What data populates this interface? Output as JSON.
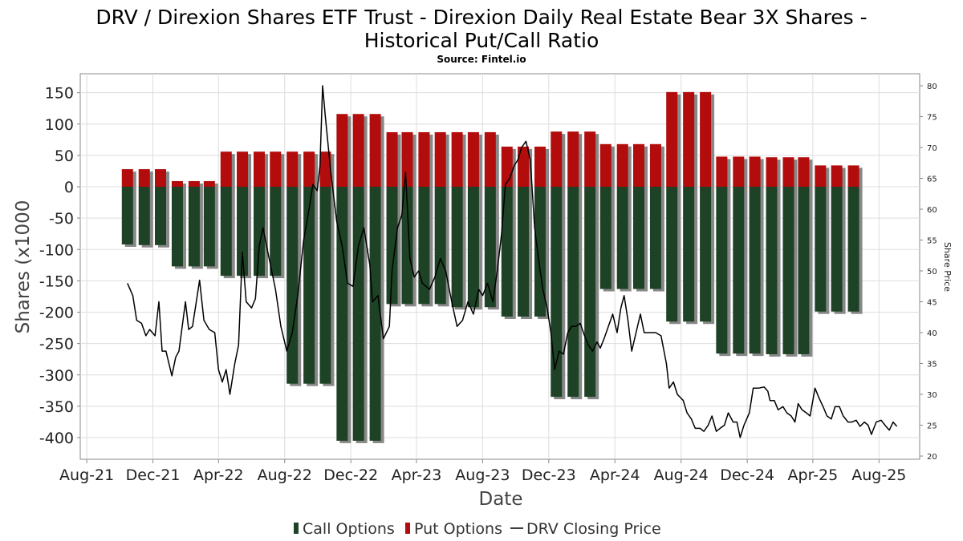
{
  "chart_data": {
    "type": "bar",
    "title_line1": "DRV / Direxion Shares ETF Trust - Direxion Daily Real Estate Bear 3X Shares -",
    "title_line2": "Historical Put/Call Ratio",
    "subtitle": "Source: Fintel.io",
    "xlabel": "Date",
    "ylabel": "Shares (x1000",
    "y2label": "Share Price",
    "ylim": [
      -420,
      180
    ],
    "yticks": [
      150,
      100,
      50,
      0,
      -50,
      -100,
      -150,
      -200,
      -250,
      -300,
      -350,
      -400
    ],
    "y2lim": [
      20,
      81
    ],
    "y2ticks": [
      80,
      75,
      70,
      65,
      60,
      55,
      50,
      45,
      40,
      35,
      30,
      25,
      20
    ],
    "xlim": [
      "2021-07-20",
      "2025-10-15"
    ],
    "xticks": [
      {
        "date": "2021-08-01",
        "label": "Aug-21"
      },
      {
        "date": "2021-12-01",
        "label": "Dec-21"
      },
      {
        "date": "2022-04-01",
        "label": "Apr-22"
      },
      {
        "date": "2022-08-01",
        "label": "Aug-22"
      },
      {
        "date": "2022-12-01",
        "label": "Dec-22"
      },
      {
        "date": "2023-04-01",
        "label": "Apr-23"
      },
      {
        "date": "2023-08-01",
        "label": "Aug-23"
      },
      {
        "date": "2023-12-01",
        "label": "Dec-23"
      },
      {
        "date": "2024-04-01",
        "label": "Apr-24"
      },
      {
        "date": "2024-08-01",
        "label": "Aug-24"
      },
      {
        "date": "2024-12-01",
        "label": "Dec-24"
      },
      {
        "date": "2025-04-01",
        "label": "Apr-25"
      },
      {
        "date": "2025-08-01",
        "label": "Aug-25"
      }
    ],
    "grid": true,
    "legend_position": "bottom",
    "colors": {
      "call": "#1e4226",
      "put": "#b20c0c",
      "price": "#000000",
      "shadow": "#888888",
      "grid": "#dddddd"
    },
    "series": [
      {
        "name": "Call Options",
        "dates": [
          "2021-10-15",
          "2021-11-15",
          "2021-12-15",
          "2022-01-15",
          "2022-02-15",
          "2022-03-15",
          "2022-04-15",
          "2022-05-15",
          "2022-06-15",
          "2022-07-15",
          "2022-08-15",
          "2022-09-15",
          "2022-10-15",
          "2022-11-15",
          "2022-12-15",
          "2023-01-15",
          "2023-02-15",
          "2023-03-15",
          "2023-04-15",
          "2023-05-15",
          "2023-06-15",
          "2023-07-15",
          "2023-08-15",
          "2023-09-15",
          "2023-10-15",
          "2023-11-15",
          "2023-12-15",
          "2024-01-15",
          "2024-02-15",
          "2024-03-15",
          "2024-04-15",
          "2024-05-15",
          "2024-06-15",
          "2024-07-15",
          "2024-08-15",
          "2024-09-15",
          "2024-10-15",
          "2024-11-15",
          "2024-12-15",
          "2025-01-15",
          "2025-02-15",
          "2025-03-15",
          "2025-04-15",
          "2025-05-15",
          "2025-06-15"
        ],
        "values": [
          -92,
          -93,
          -93,
          -127,
          -127,
          -127,
          -142,
          -142,
          -142,
          -142,
          -314,
          -314,
          -314,
          -405,
          -405,
          -405,
          -187,
          -187,
          -187,
          -187,
          -192,
          -192,
          -192,
          -207,
          -207,
          -207,
          -335,
          -335,
          -335,
          -163,
          -163,
          -163,
          -163,
          -215,
          -215,
          -215,
          -266,
          -266,
          -266,
          -267,
          -267,
          -267,
          -199,
          -199,
          -199
        ]
      },
      {
        "name": "Put Options",
        "dates": [
          "2021-10-15",
          "2021-11-15",
          "2021-12-15",
          "2022-01-15",
          "2022-02-15",
          "2022-03-15",
          "2022-04-15",
          "2022-05-15",
          "2022-06-15",
          "2022-07-15",
          "2022-08-15",
          "2022-09-15",
          "2022-10-15",
          "2022-11-15",
          "2022-12-15",
          "2023-01-15",
          "2023-02-15",
          "2023-03-15",
          "2023-04-15",
          "2023-05-15",
          "2023-06-15",
          "2023-07-15",
          "2023-08-15",
          "2023-09-15",
          "2023-10-15",
          "2023-11-15",
          "2023-12-15",
          "2024-01-15",
          "2024-02-15",
          "2024-03-15",
          "2024-04-15",
          "2024-05-15",
          "2024-06-15",
          "2024-07-15",
          "2024-08-15",
          "2024-09-15",
          "2024-10-15",
          "2024-11-15",
          "2024-12-15",
          "2025-01-15",
          "2025-02-15",
          "2025-03-15",
          "2025-04-15",
          "2025-05-15",
          "2025-06-15"
        ],
        "values": [
          28,
          28,
          28,
          9,
          9,
          9,
          56,
          56,
          56,
          56,
          56,
          56,
          56,
          116,
          116,
          116,
          87,
          87,
          87,
          87,
          87,
          87,
          87,
          64,
          64,
          64,
          88,
          88,
          88,
          68,
          68,
          68,
          68,
          151,
          151,
          151,
          48,
          48,
          48,
          47,
          47,
          47,
          34,
          34,
          34
        ]
      },
      {
        "name": "DRV Closing Price",
        "points": [
          [
            "2021-10-15",
            48
          ],
          [
            "2021-10-25",
            46
          ],
          [
            "2021-11-01",
            42
          ],
          [
            "2021-11-10",
            41.5
          ],
          [
            "2021-11-18",
            39.5
          ],
          [
            "2021-11-25",
            40.5
          ],
          [
            "2021-12-05",
            39.5
          ],
          [
            "2021-12-12",
            45
          ],
          [
            "2021-12-18",
            37
          ],
          [
            "2021-12-25",
            37
          ],
          [
            "2022-01-05",
            33
          ],
          [
            "2022-01-12",
            36
          ],
          [
            "2022-01-18",
            37
          ],
          [
            "2022-01-30",
            45
          ],
          [
            "2022-02-05",
            40.5
          ],
          [
            "2022-02-12",
            41
          ],
          [
            "2022-02-25",
            48.5
          ],
          [
            "2022-03-05",
            42
          ],
          [
            "2022-03-15",
            40.5
          ],
          [
            "2022-03-25",
            40
          ],
          [
            "2022-04-01",
            34
          ],
          [
            "2022-04-08",
            32
          ],
          [
            "2022-04-15",
            34
          ],
          [
            "2022-04-22",
            30
          ],
          [
            "2022-05-01",
            35
          ],
          [
            "2022-05-08",
            38
          ],
          [
            "2022-05-15",
            53
          ],
          [
            "2022-05-22",
            45
          ],
          [
            "2022-06-01",
            44
          ],
          [
            "2022-06-08",
            45.5
          ],
          [
            "2022-06-15",
            54
          ],
          [
            "2022-06-22",
            57
          ],
          [
            "2022-07-01",
            53
          ],
          [
            "2022-07-15",
            47
          ],
          [
            "2022-07-25",
            41
          ],
          [
            "2022-08-05",
            37
          ],
          [
            "2022-08-15",
            40
          ],
          [
            "2022-08-25",
            46
          ],
          [
            "2022-09-05",
            55
          ],
          [
            "2022-09-15",
            60
          ],
          [
            "2022-09-22",
            64
          ],
          [
            "2022-09-30",
            63
          ],
          [
            "2022-10-05",
            67
          ],
          [
            "2022-10-10",
            80
          ],
          [
            "2022-10-15",
            75
          ],
          [
            "2022-10-25",
            66
          ],
          [
            "2022-11-05",
            58
          ],
          [
            "2022-11-15",
            54
          ],
          [
            "2022-11-25",
            48
          ],
          [
            "2022-12-05",
            47.5
          ],
          [
            "2022-12-15",
            54
          ],
          [
            "2022-12-25",
            57
          ],
          [
            "2023-01-05",
            51
          ],
          [
            "2023-01-10",
            45
          ],
          [
            "2023-01-20",
            46
          ],
          [
            "2023-01-30",
            39
          ],
          [
            "2023-02-10",
            41
          ],
          [
            "2023-02-15",
            50
          ],
          [
            "2023-02-25",
            57
          ],
          [
            "2023-03-05",
            59
          ],
          [
            "2023-03-12",
            66
          ],
          [
            "2023-03-20",
            52
          ],
          [
            "2023-03-28",
            49
          ],
          [
            "2023-04-05",
            50
          ],
          [
            "2023-04-12",
            48
          ],
          [
            "2023-04-25",
            47
          ],
          [
            "2023-05-05",
            49
          ],
          [
            "2023-05-15",
            52
          ],
          [
            "2023-05-25",
            50
          ],
          [
            "2023-06-05",
            45
          ],
          [
            "2023-06-15",
            41
          ],
          [
            "2023-06-25",
            42
          ],
          [
            "2023-07-05",
            45
          ],
          [
            "2023-07-15",
            43
          ],
          [
            "2023-07-25",
            47
          ],
          [
            "2023-08-01",
            46
          ],
          [
            "2023-08-10",
            48
          ],
          [
            "2023-08-20",
            45
          ],
          [
            "2023-08-28",
            50
          ],
          [
            "2023-09-05",
            56
          ],
          [
            "2023-09-12",
            64
          ],
          [
            "2023-09-20",
            65
          ],
          [
            "2023-09-28",
            67
          ],
          [
            "2023-10-05",
            68
          ],
          [
            "2023-10-12",
            70
          ],
          [
            "2023-10-20",
            71
          ],
          [
            "2023-10-28",
            68
          ],
          [
            "2023-11-05",
            57
          ],
          [
            "2023-11-12",
            52
          ],
          [
            "2023-11-20",
            47
          ],
          [
            "2023-11-28",
            44
          ],
          [
            "2023-12-05",
            40
          ],
          [
            "2023-12-12",
            34
          ],
          [
            "2023-12-20",
            37
          ],
          [
            "2023-12-28",
            36.5
          ],
          [
            "2024-01-05",
            40
          ],
          [
            "2024-01-12",
            41
          ],
          [
            "2024-01-20",
            41
          ],
          [
            "2024-01-28",
            41.5
          ],
          [
            "2024-02-05",
            39.5
          ],
          [
            "2024-02-12",
            38
          ],
          [
            "2024-02-20",
            37
          ],
          [
            "2024-02-28",
            38.5
          ],
          [
            "2024-03-05",
            37.5
          ],
          [
            "2024-03-12",
            39
          ],
          [
            "2024-03-20",
            41
          ],
          [
            "2024-03-28",
            43
          ],
          [
            "2024-04-05",
            40
          ],
          [
            "2024-04-12",
            44
          ],
          [
            "2024-04-18",
            46
          ],
          [
            "2024-04-25",
            42
          ],
          [
            "2024-05-02",
            37
          ],
          [
            "2024-05-10",
            40
          ],
          [
            "2024-05-18",
            43
          ],
          [
            "2024-05-25",
            40
          ],
          [
            "2024-06-05",
            40
          ],
          [
            "2024-06-15",
            40
          ],
          [
            "2024-06-25",
            39.5
          ],
          [
            "2024-07-05",
            35
          ],
          [
            "2024-07-10",
            31
          ],
          [
            "2024-07-18",
            32
          ],
          [
            "2024-07-25",
            30
          ],
          [
            "2024-08-05",
            29
          ],
          [
            "2024-08-12",
            27
          ],
          [
            "2024-08-20",
            26
          ],
          [
            "2024-08-27",
            24.5
          ],
          [
            "2024-09-05",
            24.5
          ],
          [
            "2024-09-12",
            24
          ],
          [
            "2024-09-20",
            25
          ],
          [
            "2024-09-27",
            26.5
          ],
          [
            "2024-10-05",
            24
          ],
          [
            "2024-10-12",
            24.5
          ],
          [
            "2024-10-20",
            25
          ],
          [
            "2024-10-27",
            27
          ],
          [
            "2024-11-05",
            25.5
          ],
          [
            "2024-11-12",
            25.5
          ],
          [
            "2024-11-18",
            23
          ],
          [
            "2024-11-25",
            25
          ],
          [
            "2024-12-05",
            27
          ],
          [
            "2024-12-12",
            31
          ],
          [
            "2024-12-22",
            31
          ],
          [
            "2025-01-01",
            31.2
          ],
          [
            "2025-01-08",
            30.5
          ],
          [
            "2025-01-12",
            29
          ],
          [
            "2025-01-20",
            29
          ],
          [
            "2025-01-27",
            27.5
          ],
          [
            "2025-02-05",
            28
          ],
          [
            "2025-02-12",
            27
          ],
          [
            "2025-02-20",
            26.5
          ],
          [
            "2025-02-27",
            25.5
          ],
          [
            "2025-03-05",
            28.5
          ],
          [
            "2025-03-12",
            27.5
          ],
          [
            "2025-03-20",
            27
          ],
          [
            "2025-03-27",
            26.5
          ],
          [
            "2025-04-05",
            31
          ],
          [
            "2025-04-12",
            29.5
          ],
          [
            "2025-04-20",
            28
          ],
          [
            "2025-04-27",
            26.5
          ],
          [
            "2025-05-05",
            26
          ],
          [
            "2025-05-12",
            28
          ],
          [
            "2025-05-20",
            28
          ],
          [
            "2025-05-27",
            26.5
          ],
          [
            "2025-06-05",
            25.5
          ],
          [
            "2025-06-12",
            25.5
          ],
          [
            "2025-06-20",
            25.8
          ],
          [
            "2025-06-27",
            24.8
          ],
          [
            "2025-07-05",
            25.5
          ],
          [
            "2025-07-12",
            25
          ],
          [
            "2025-07-18",
            23.5
          ],
          [
            "2025-07-27",
            25.5
          ],
          [
            "2025-08-05",
            25.8
          ],
          [
            "2025-08-12",
            25
          ],
          [
            "2025-08-20",
            24.2
          ],
          [
            "2025-08-27",
            25.5
          ],
          [
            "2025-09-03",
            24.8
          ]
        ]
      }
    ]
  }
}
